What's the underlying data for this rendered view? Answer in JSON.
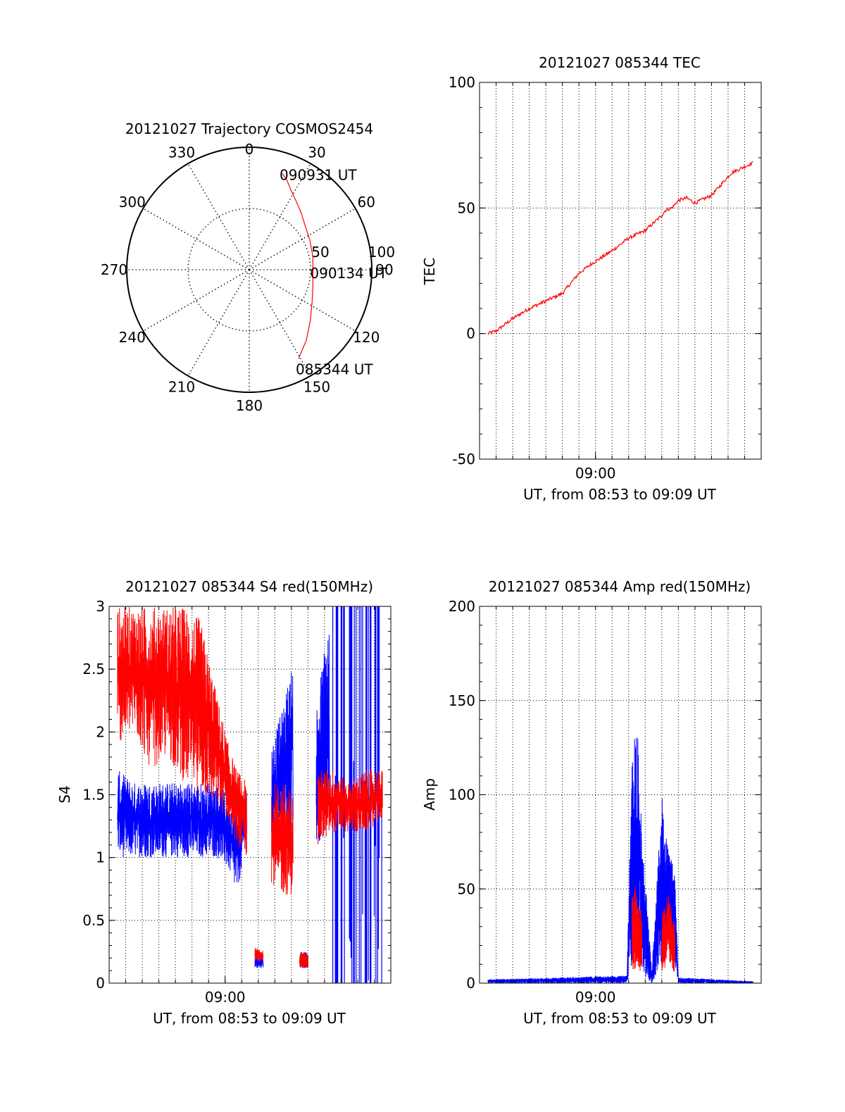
{
  "colors": {
    "red": "#ff0000",
    "blue": "#0000ff",
    "axis": "#000000",
    "grid": "#000000",
    "background": "#ffffff"
  },
  "chart_data": [
    {
      "type": "polar",
      "title": "20121027 Trajectory COSMOS2454",
      "angle_labels": [
        "0",
        "30",
        "60",
        "90",
        "120",
        "150",
        "180",
        "210",
        "240",
        "270",
        "300",
        "330"
      ],
      "radius_labels": [
        "50",
        "100"
      ],
      "rlim": [
        0,
        100
      ],
      "grid": true,
      "series": [
        {
          "color": "red",
          "points_az_r": [
            [
              19,
              83
            ],
            [
              23,
              79
            ],
            [
              28,
              73
            ],
            [
              34,
              68
            ],
            [
              42,
              63
            ],
            [
              52,
              58
            ],
            [
              64,
              55
            ],
            [
              78,
              53
            ],
            [
              92,
              52
            ],
            [
              106,
              54
            ],
            [
              118,
              58
            ],
            [
              130,
              65
            ],
            [
              141,
              74
            ],
            [
              151,
              83
            ]
          ]
        }
      ],
      "annotations": [
        {
          "text": "090931 UT",
          "az": 19,
          "r": 83
        },
        {
          "text": "090134 UT",
          "az": 92,
          "r": 52
        },
        {
          "text": "085344 UT",
          "az": 151,
          "r": 83
        }
      ]
    },
    {
      "type": "line",
      "title": "20121027 085344 TEC",
      "xlabel": "UT, from 08:53 to 09:09 UT",
      "ylabel": "TEC",
      "xtick_labels": [
        "09:00"
      ],
      "ytick_labels": [
        "-50",
        "0",
        "50",
        "100"
      ],
      "ylim": [
        -50,
        100
      ],
      "grid": true,
      "series": [
        {
          "color": "red",
          "x_min": [
            0.5,
            1,
            2,
            3,
            4,
            5,
            6,
            6.8,
            7.3,
            8,
            9,
            10,
            11,
            11.2,
            11.6,
            12,
            12.5,
            13,
            14,
            15.2,
            16.5
          ],
          "y": [
            0,
            1,
            6,
            10,
            13,
            16,
            24,
            28,
            30,
            33,
            38,
            41,
            47,
            49,
            50,
            53,
            54,
            52,
            55,
            64,
            68
          ]
        }
      ]
    },
    {
      "type": "line",
      "title": "20121027 085344 S4 red(150MHz)",
      "xlabel": "UT, from 08:53 to 09:09 UT",
      "ylabel": "S4",
      "xtick_labels": [
        "09:00"
      ],
      "ytick_labels": [
        "0",
        "0.5",
        "1",
        "1.5",
        "2",
        "2.5",
        "3"
      ],
      "ylim": [
        0,
        3
      ],
      "grid": true,
      "series": [
        {
          "color": "red",
          "segments": [
            {
              "x": [
                0.5,
                1.5,
                2.5,
                3.5,
                4.5,
                5.5,
                6.5,
                7.2,
                7.7,
                8.3
              ],
              "lo": [
                1.9,
                2.0,
                1.7,
                1.8,
                1.6,
                1.5,
                1.4,
                1.3,
                1.1,
                1.0
              ],
              "hi": [
                3.0,
                3.0,
                3.0,
                3.0,
                3.0,
                2.9,
                2.3,
                1.9,
                1.7,
                1.6
              ]
            },
            {
              "x": [
                8.8,
                9.3
              ],
              "lo": [
                0.17,
                0.17
              ],
              "hi": [
                0.28,
                0.28
              ]
            },
            {
              "x": [
                9.8,
                10.5,
                11.1
              ],
              "lo": [
                0.8,
                0.7,
                0.7
              ],
              "hi": [
                1.6,
                1.6,
                1.5
              ]
            },
            {
              "x": [
                11.5,
                12.0
              ],
              "lo": [
                0.12,
                0.12
              ],
              "hi": [
                0.25,
                0.25
              ]
            },
            {
              "x": [
                12.6,
                13.5,
                14.5,
                15.5,
                16.5
              ],
              "lo": [
                1.1,
                1.2,
                1.2,
                1.2,
                1.3
              ],
              "hi": [
                1.7,
                1.7,
                1.6,
                1.7,
                1.7
              ]
            }
          ]
        },
        {
          "color": "blue",
          "segments": [
            {
              "x": [
                0.5,
                1.5,
                2.5,
                3.5,
                4.5,
                5.5,
                6.5,
                7.2,
                7.7,
                8.3
              ],
              "lo": [
                1.0,
                1.0,
                1.0,
                1.0,
                1.0,
                1.0,
                1.0,
                0.9,
                0.7,
                1.1
              ],
              "hi": [
                1.7,
                1.6,
                1.6,
                1.6,
                1.6,
                1.6,
                1.6,
                1.5,
                1.4,
                1.6
              ]
            },
            {
              "x": [
                8.8,
                9.3
              ],
              "lo": [
                0.12,
                0.12
              ],
              "hi": [
                0.22,
                0.22
              ]
            },
            {
              "x": [
                9.8,
                10.5,
                11.1
              ],
              "lo": [
                1.1,
                1.2,
                1.1
              ],
              "hi": [
                1.9,
                2.2,
                2.6
              ]
            },
            {
              "x": [
                11.5,
                12.0
              ],
              "lo": [
                0.12,
                0.12
              ],
              "hi": [
                0.25,
                0.25
              ]
            },
            {
              "x": [
                12.5,
                13.3
              ],
              "lo": [
                1.1,
                1.2
              ],
              "hi": [
                2.2,
                3.0
              ]
            }
          ],
          "saturated_x": [
            13.5,
            16.5
          ]
        }
      ]
    },
    {
      "type": "line",
      "title": "20121027 085344 Amp red(150MHz)",
      "xlabel": "UT, from 08:53 to 09:09 UT",
      "ylabel": "Amp",
      "xtick_labels": [
        "09:00"
      ],
      "ytick_labels": [
        "0",
        "50",
        "100",
        "150",
        "200"
      ],
      "ylim": [
        0,
        200
      ],
      "grid": true,
      "series": [
        {
          "color": "red",
          "segments": [
            {
              "x": [
                9.2,
                9.5,
                9.8
              ],
              "lo": [
                5,
                8,
                5
              ],
              "hi": [
                50,
                52,
                35
              ]
            },
            {
              "x": [
                11.0,
                11.4,
                11.8
              ],
              "lo": [
                5,
                10,
                5
              ],
              "hi": [
                40,
                48,
                30
              ]
            }
          ]
        },
        {
          "color": "blue",
          "segments": [
            {
              "x": [
                0.5,
                8.9,
                9.2,
                9.5,
                9.8,
                10.4,
                11.0,
                11.4,
                11.8,
                12.0,
                16.5
              ],
              "lo": [
                0,
                0,
                10,
                20,
                5,
                0,
                10,
                20,
                5,
                0,
                0
              ],
              "hi": [
                2,
                4,
                120,
                140,
                80,
                6,
                100,
                70,
                60,
                3,
                1
              ]
            }
          ]
        }
      ]
    }
  ]
}
